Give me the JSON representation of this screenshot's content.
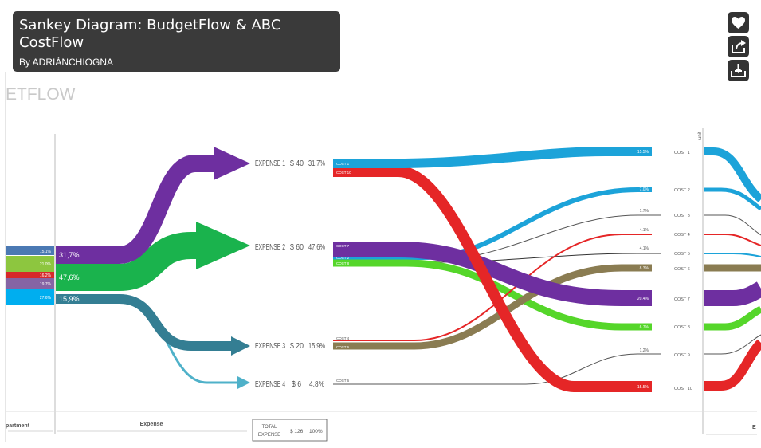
{
  "viewer": {
    "title": "Sankey Diagram: BudgetFlow & ABC CostFlow",
    "author": "By ADRIÁNCHIOGNA",
    "actions": [
      {
        "name": "like-button",
        "icon": "heart-icon"
      },
      {
        "name": "share-button",
        "icon": "share-icon"
      },
      {
        "name": "download-button",
        "icon": "download-icon"
      }
    ]
  },
  "diagram": {
    "header_fragment": "ETFLOW",
    "colors": {
      "blue": "#1ca3d9",
      "purple": "#6e2fa0",
      "green": "#1ab34d",
      "teal": "#347e93",
      "lightblue": "#4fb1c9",
      "red": "#e52627",
      "lime": "#55d62a",
      "olive": "#8a7c52",
      "grey": "#555555",
      "dept_blue": "#4b79b3",
      "dept_lime": "#8dc63f",
      "dept_red": "#d7292a",
      "dept_purple": "#8564a4",
      "dept_cyan": "#00aeef"
    },
    "department_bars": [
      {
        "label": "15.1%",
        "color": "dept_blue"
      },
      {
        "label": "21.0%",
        "color": "dept_lime"
      },
      {
        "label": "16.2%",
        "color": "dept_red"
      },
      {
        "label": "19.7%",
        "color": "dept_purple"
      },
      {
        "label": "27.6%",
        "color": "dept_cyan"
      }
    ],
    "department_flows": [
      {
        "label": "31,7%"
      },
      {
        "label": "47,6%"
      },
      {
        "label": "15,9%"
      }
    ],
    "expenses": [
      {
        "name": "EXPENSE 1",
        "amount": "$ 40",
        "pct": "31.7%"
      },
      {
        "name": "EXPENSE 2",
        "amount": "$ 60",
        "pct": "47.6%"
      },
      {
        "name": "EXPENSE 3",
        "amount": "$ 20",
        "pct": "15.9%"
      },
      {
        "name": "EXPENSE 4",
        "amount": "$ 6",
        "pct": "4.8%"
      }
    ],
    "cost_tags": [
      {
        "text": "COST 1"
      },
      {
        "text": "COST 10"
      },
      {
        "text": "COST 7"
      },
      {
        "text": "COST 2"
      },
      {
        "text": "COST 8"
      },
      {
        "text": "COST 4"
      },
      {
        "text": "COST 6"
      },
      {
        "text": "COST 6"
      }
    ],
    "flow_pcts": [
      {
        "text": "15.5%"
      },
      {
        "text": "7.0%"
      },
      {
        "text": "1.7%"
      },
      {
        "text": "4.1%"
      },
      {
        "text": "4.1%"
      },
      {
        "text": "8.3%"
      },
      {
        "text": "20.4%"
      },
      {
        "text": "6.7%"
      },
      {
        "text": "1.2%"
      },
      {
        "text": "15.5%"
      }
    ],
    "costs": [
      "COST 1",
      "COST 2",
      "COST 3",
      "COST 4",
      "COST 5",
      "COST 6",
      "COST 7",
      "COST 8",
      "COST 9",
      "COST 10"
    ],
    "unit_label": "unit",
    "total": {
      "label_line1": "TOTAL",
      "label_line2": "EXPENSE",
      "amount": "$ 126",
      "pct": "100%"
    },
    "axis": {
      "department": "partment",
      "expense": "Expense",
      "right": "E"
    }
  }
}
